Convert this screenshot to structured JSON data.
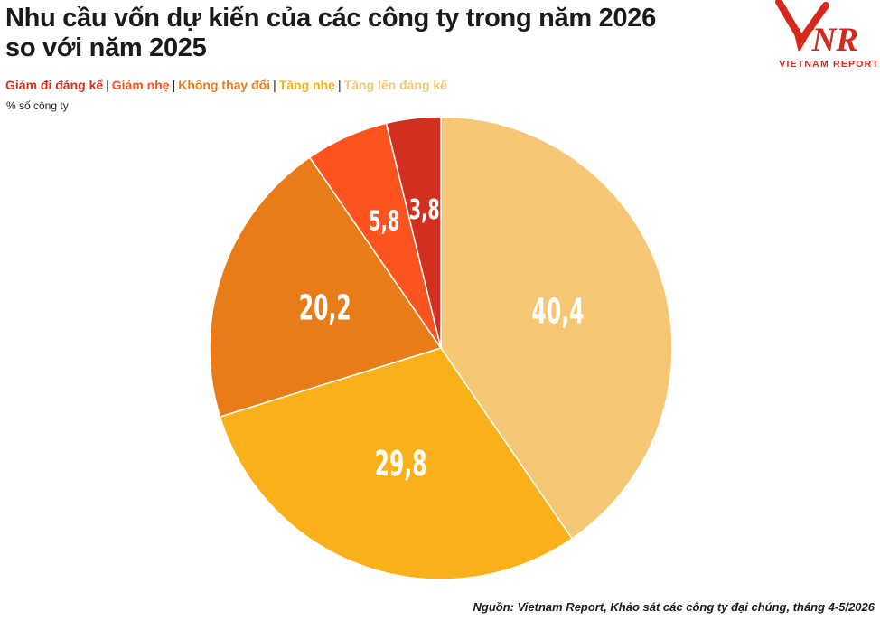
{
  "title_line1": "Nhu cầu vốn dự kiến của các công ty trong năm 2026",
  "title_line2": "so với năm 2025",
  "logo": {
    "text": "VNR",
    "subtext": "VIETNAM REPORT",
    "color": "#d7281e"
  },
  "legend": [
    {
      "label": "Giảm đi đáng kể",
      "color": "#d0301d"
    },
    {
      "label": "Giảm nhẹ",
      "color": "#fd531f"
    },
    {
      "label": "Không thay đổi",
      "color": "#e87d18"
    },
    {
      "label": "Tăng nhẹ",
      "color": "#fab119"
    },
    {
      "label": "Tăng lên đáng kể",
      "color": "#f5c674"
    }
  ],
  "legend_separator": "|",
  "unit_label": "% số công ty",
  "source": "Nguồn: Vietnam Report, Khảo sát các công ty đại chúng, tháng 4-5/2026",
  "chart_data": {
    "type": "pie",
    "title": "Nhu cầu vốn dự kiến của các công ty trong năm 2026 so với năm 2025",
    "unit": "% số công ty",
    "slices": [
      {
        "label": "Tăng lên đáng kể",
        "value": 40.4,
        "display": "40,4",
        "color": "#f5c674"
      },
      {
        "label": "Tăng nhẹ",
        "value": 29.8,
        "display": "29,8",
        "color": "#fab119"
      },
      {
        "label": "Không thay đổi",
        "value": 20.2,
        "display": "20,2",
        "color": "#e87d18"
      },
      {
        "label": "Giảm nhẹ",
        "value": 5.8,
        "display": "5,8",
        "color": "#fd531f"
      },
      {
        "label": "Giảm đi đáng kể",
        "value": 3.8,
        "display": "3,8",
        "color": "#d0301d"
      }
    ],
    "start_angle": "12 o'clock",
    "direction": "clockwise",
    "legend_position": "top-left"
  }
}
